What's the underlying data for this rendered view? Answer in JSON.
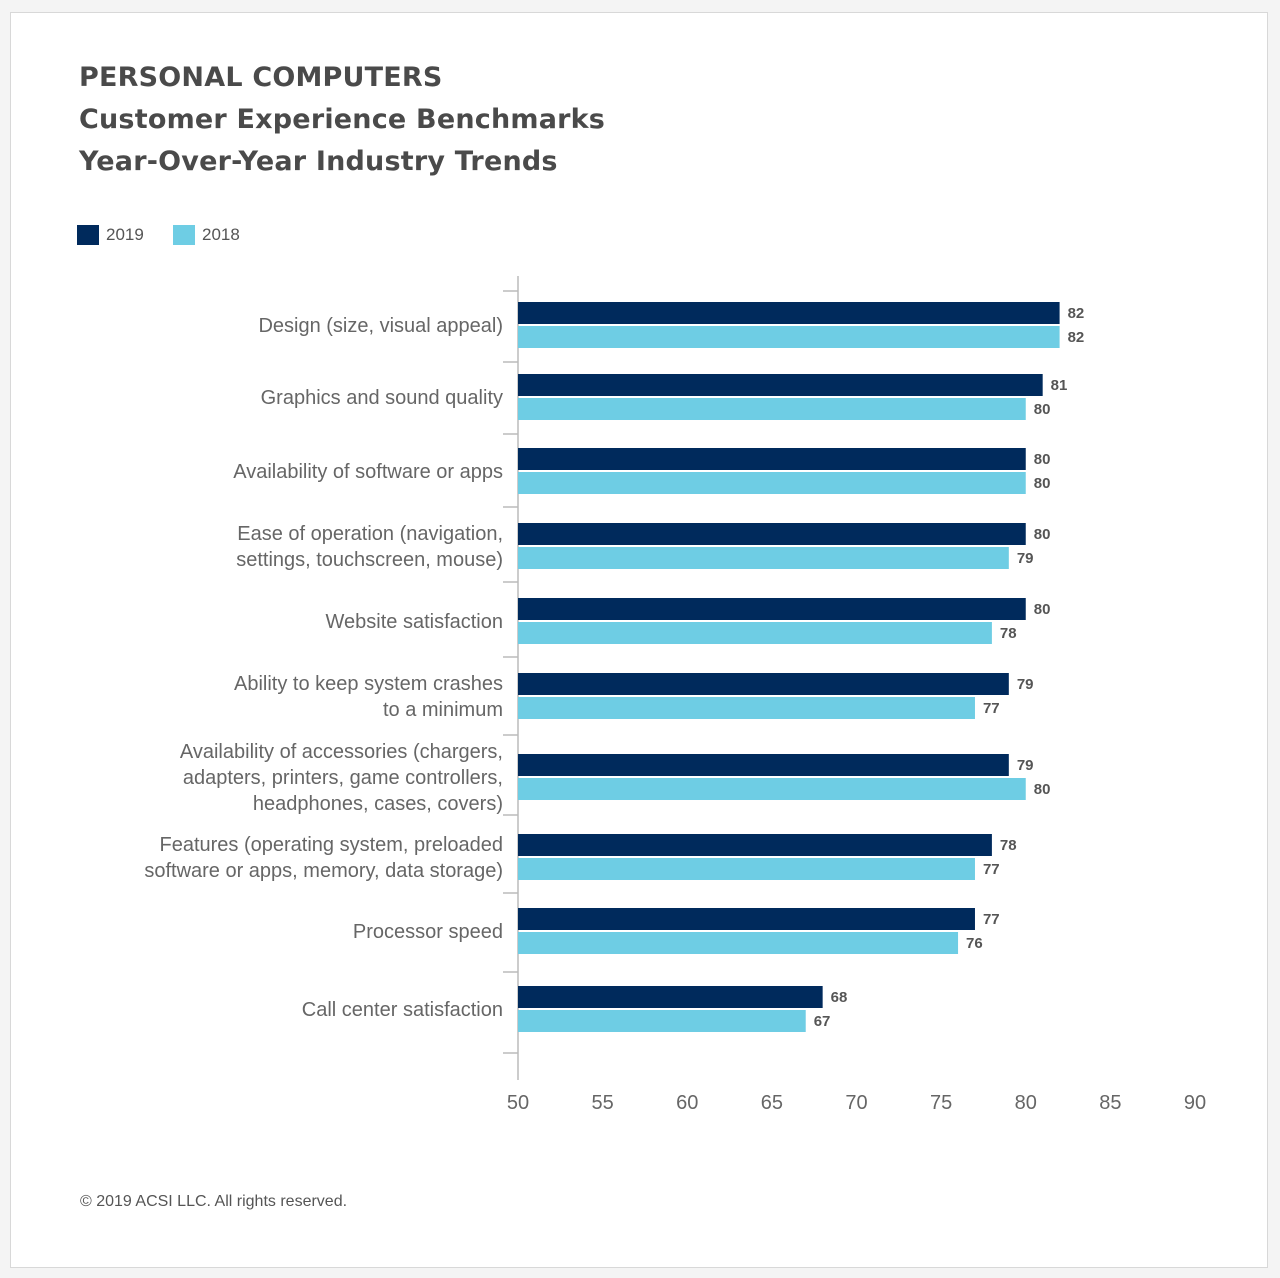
{
  "chart_data": {
    "type": "bar",
    "orientation": "horizontal",
    "title": [
      "PERSONAL COMPUTERS",
      "Customer Experience Benchmarks",
      "Year-Over-Year Industry Trends"
    ],
    "categories": [
      [
        "Design (size, visual appeal)"
      ],
      [
        "Graphics and sound quality"
      ],
      [
        "Availability of software or apps"
      ],
      [
        "Ease of operation (navigation,",
        "settings, touchscreen, mouse)"
      ],
      [
        "Website satisfaction"
      ],
      [
        "Ability to keep system crashes",
        "to a minimum"
      ],
      [
        "Availability of accessories (chargers,",
        "adapters, printers, game controllers,",
        "headphones, cases, covers)"
      ],
      [
        "Features (operating system, preloaded",
        "software or apps, memory, data storage)"
      ],
      [
        "Processor speed"
      ],
      [
        "Call center satisfaction"
      ]
    ],
    "series": [
      {
        "name": "2019",
        "color": "#002a5c",
        "values": [
          82,
          81,
          80,
          80,
          80,
          79,
          79,
          78,
          77,
          68
        ]
      },
      {
        "name": "2018",
        "color": "#6ecde4",
        "values": [
          82,
          80,
          80,
          79,
          78,
          77,
          80,
          77,
          76,
          67
        ]
      }
    ],
    "xlim": [
      50,
      90
    ],
    "xticks": [
      50,
      55,
      60,
      65,
      70,
      75,
      80,
      85,
      90
    ],
    "grid": false,
    "legend": "top-left"
  },
  "footer": "© 2019 ACSI LLC. All rights reserved."
}
